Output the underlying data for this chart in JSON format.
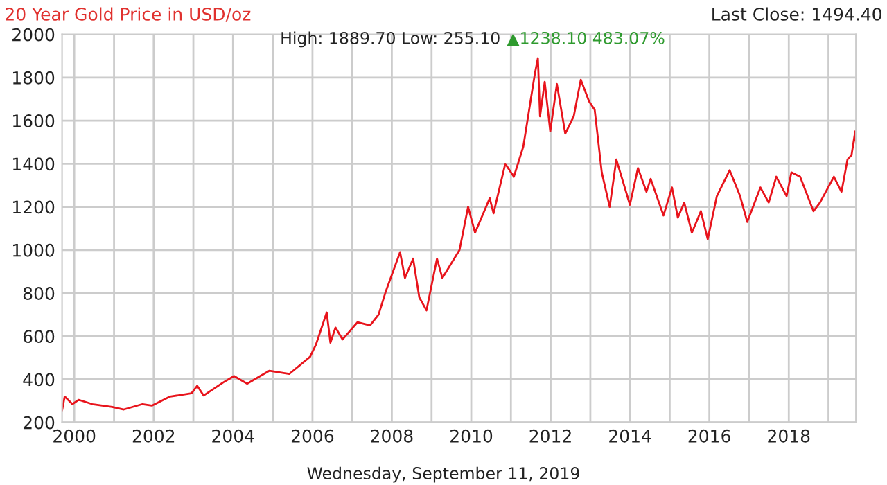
{
  "chart_data": {
    "type": "line",
    "title": "20 Year Gold Price in USD/oz",
    "subtitle": "High: 1889.70 Low: 255.10",
    "annotations": [
      "Last Close: 1494.40",
      "▲1238.10 483.07%",
      "Wednesday, September 11, 2019"
    ],
    "x": [
      "1999-09-11",
      "1999-10-05",
      "1999-12-15",
      "2000-02-10",
      "2000-06-15",
      "2000-12-15",
      "2001-04-01",
      "2001-09-20",
      "2001-12-15",
      "2002-06-01",
      "2002-12-15",
      "2003-02-05",
      "2003-04-05",
      "2003-10-01",
      "2004-01-10",
      "2004-05-10",
      "2004-12-01",
      "2005-06-01",
      "2005-12-10",
      "2006-02-01",
      "2006-05-12",
      "2006-06-15",
      "2006-08-01",
      "2006-10-05",
      "2007-02-20",
      "2007-06-15",
      "2007-09-01",
      "2007-11-08",
      "2008-03-17",
      "2008-05-01",
      "2008-07-15",
      "2008-09-10",
      "2008-10-24",
      "2008-11-15",
      "2009-02-20",
      "2009-04-10",
      "2009-09-15",
      "2009-12-03",
      "2010-02-05",
      "2010-06-20",
      "2010-07-25",
      "2010-11-10",
      "2011-01-28",
      "2011-04-25",
      "2011-08-10",
      "2011-09-06",
      "2011-09-26",
      "2011-11-08",
      "2011-12-29",
      "2012-02-28",
      "2012-05-15",
      "2012-08-01",
      "2012-10-05",
      "2012-12-20",
      "2013-02-10",
      "2013-04-16",
      "2013-06-28",
      "2013-08-28",
      "2013-12-31",
      "2014-03-15",
      "2014-06-01",
      "2014-07-10",
      "2014-11-05",
      "2015-01-22",
      "2015-03-17",
      "2015-05-15",
      "2015-07-24",
      "2015-10-15",
      "2015-12-17",
      "2016-03-10",
      "2016-07-06",
      "2016-10-10",
      "2016-12-15",
      "2017-04-15",
      "2017-06-30",
      "2017-09-08",
      "2017-12-12",
      "2018-01-25",
      "2018-04-15",
      "2018-08-16",
      "2018-10-15",
      "2019-02-20",
      "2019-05-01",
      "2019-06-25",
      "2019-08-01",
      "2019-09-04",
      "2019-09-11"
    ],
    "series": [
      {
        "color": "#e8141c",
        "values": [
          255,
          320,
          285,
          305,
          285,
          272,
          260,
          285,
          278,
          320,
          335,
          370,
          325,
          385,
          415,
          380,
          440,
          425,
          505,
          560,
          710,
          570,
          640,
          585,
          665,
          650,
          700,
          810,
          990,
          870,
          960,
          780,
          740,
          720,
          960,
          870,
          1000,
          1200,
          1080,
          1240,
          1170,
          1400,
          1340,
          1480,
          1820,
          1890,
          1620,
          1780,
          1550,
          1770,
          1540,
          1620,
          1790,
          1690,
          1650,
          1360,
          1200,
          1420,
          1210,
          1380,
          1270,
          1330,
          1160,
          1290,
          1150,
          1220,
          1080,
          1180,
          1050,
          1250,
          1370,
          1250,
          1130,
          1290,
          1220,
          1340,
          1250,
          1360,
          1340,
          1180,
          1220,
          1340,
          1270,
          1420,
          1440,
          1550,
          1494
        ]
      }
    ],
    "xlim": [
      "1999-09-11",
      "2019-09-11"
    ],
    "xticks": [
      {
        "value": "2000-01-01",
        "label": "2000"
      },
      {
        "value": "2001-01-01",
        "label": null
      },
      {
        "value": "2002-01-01",
        "label": "2002"
      },
      {
        "value": "2003-01-01",
        "label": null
      },
      {
        "value": "2004-01-01",
        "label": "2004"
      },
      {
        "value": "2005-01-01",
        "label": null
      },
      {
        "value": "2006-01-01",
        "label": "2006"
      },
      {
        "value": "2007-01-01",
        "label": null
      },
      {
        "value": "2008-01-01",
        "label": "2008"
      },
      {
        "value": "2009-01-01",
        "label": null
      },
      {
        "value": "2010-01-01",
        "label": "2010"
      },
      {
        "value": "2011-01-01",
        "label": null
      },
      {
        "value": "2012-01-01",
        "label": "2012"
      },
      {
        "value": "2013-01-01",
        "label": null
      },
      {
        "value": "2014-01-01",
        "label": "2014"
      },
      {
        "value": "2015-01-01",
        "label": null
      },
      {
        "value": "2016-01-01",
        "label": "2016"
      },
      {
        "value": "2017-01-01",
        "label": null
      },
      {
        "value": "2018-01-01",
        "label": "2018"
      },
      {
        "value": "2019-01-01",
        "label": null
      }
    ],
    "ylim": [
      200,
      2000
    ],
    "yticks": [
      200,
      400,
      600,
      800,
      1000,
      1200,
      1400,
      1600,
      1800,
      2000
    ],
    "grid": true,
    "legend": false,
    "marker": "none",
    "line_style": "solid"
  }
}
